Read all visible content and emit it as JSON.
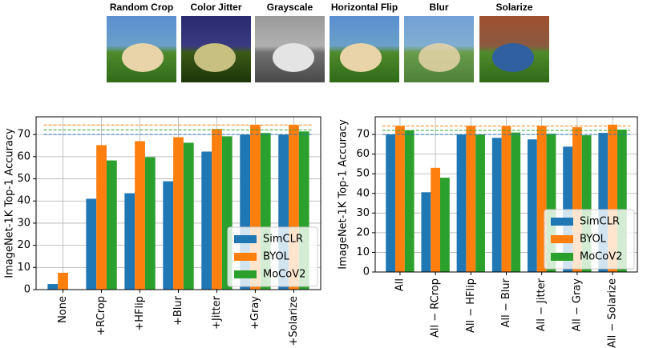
{
  "image_panel": {
    "labels": [
      "Random Crop",
      "Color Jitter",
      "Grayscale",
      "Horizontal Flip",
      "Blur",
      "Solarize"
    ]
  },
  "chart_data": [
    {
      "type": "bar",
      "ylabel": "ImageNet-1K Top-1 Accuracy",
      "categories": [
        "None",
        "+RCrop",
        "+HFlip",
        "+Blur",
        "+Jitter",
        "+Gray",
        "+Solarize"
      ],
      "series": [
        {
          "name": "SimCLR",
          "color": "#1f77b4",
          "values": [
            2.5,
            41,
            43.5,
            48.9,
            62.3,
            69.9,
            69.9
          ]
        },
        {
          "name": "BYOL",
          "color": "#ff7f0e",
          "values": [
            7.6,
            65.2,
            67,
            68.8,
            72.5,
            74.3,
            74.3
          ]
        },
        {
          "name": "MoCoV2",
          "color": "#2ca02c",
          "values": [
            0,
            58.3,
            59.8,
            66.3,
            69.2,
            70.7,
            71.4
          ]
        }
      ],
      "hlines": [
        70,
        74.3,
        72.1
      ],
      "ylim": [
        0,
        78
      ],
      "yticks": [
        0,
        10,
        20,
        30,
        40,
        50,
        60,
        70
      ],
      "grid": true,
      "legend": "lower right"
    },
    {
      "type": "bar",
      "ylabel": "ImageNet-1K Top-1 Accuracy",
      "categories": [
        "All",
        "All − RCrop",
        "All − HFlip",
        "All − Blur",
        "All − Jitter",
        "All − Gray",
        "All − Solarize"
      ],
      "series": [
        {
          "name": "SimCLR",
          "color": "#1f77b4",
          "values": [
            70,
            40.6,
            70,
            68.3,
            67.5,
            63.8,
            70.8
          ]
        },
        {
          "name": "BYOL",
          "color": "#ff7f0e",
          "values": [
            74.3,
            53,
            74.3,
            74.3,
            74.3,
            73.7,
            75
          ]
        },
        {
          "name": "MoCoV2",
          "color": "#2ca02c",
          "values": [
            72.1,
            48,
            70,
            71,
            70.4,
            69.6,
            72.5
          ]
        }
      ],
      "hlines": [
        70,
        74.3,
        72.1
      ],
      "ylim": [
        0,
        79
      ],
      "yticks": [
        0,
        10,
        20,
        30,
        40,
        50,
        60,
        70
      ],
      "grid": true,
      "legend": "lower right"
    }
  ]
}
